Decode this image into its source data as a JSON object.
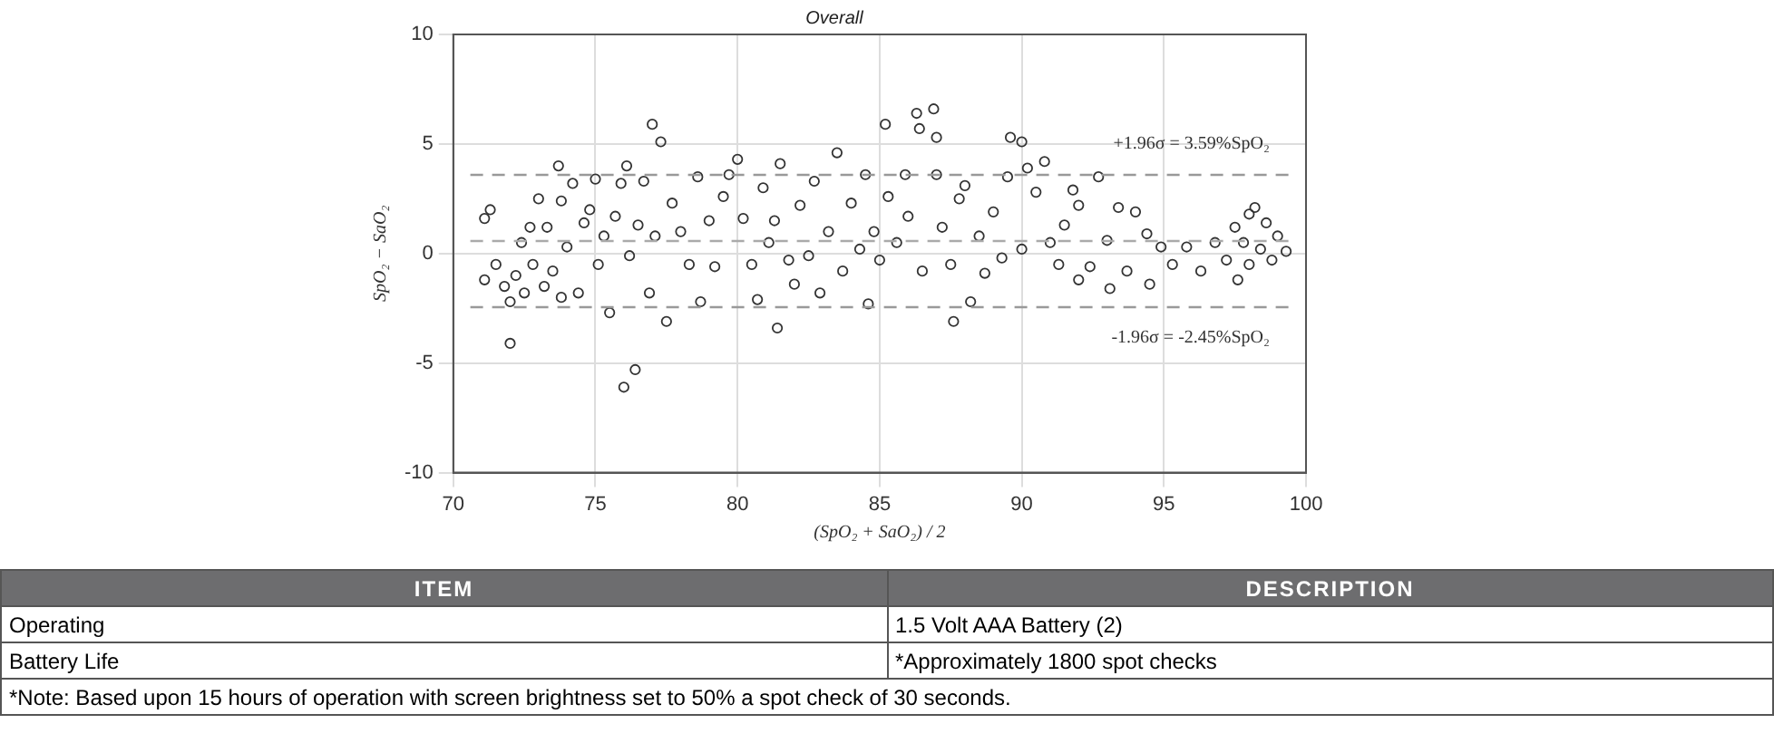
{
  "chart_data": {
    "type": "scatter",
    "title": "Overall",
    "xlabel": "(SpO₂ + SaO₂) / 2",
    "ylabel": "SpO₂ − SaO₂",
    "xlim": [
      70,
      100
    ],
    "xticks": [
      70,
      75,
      80,
      85,
      90,
      95,
      100
    ],
    "ylim": [
      -10,
      10
    ],
    "yticks": [
      -10,
      -5,
      0,
      5,
      10
    ],
    "grid": true,
    "legend": false,
    "marker": "circle",
    "series": [
      {
        "color": "#333333",
        "x": [
          71.1,
          71.3,
          71.1,
          71.5,
          71.8,
          72.0,
          72.0,
          72.2,
          72.4,
          72.5,
          72.7,
          72.8,
          73.0,
          73.2,
          73.3,
          73.5,
          73.7,
          73.8,
          73.8,
          74.0,
          74.2,
          74.4,
          74.6,
          74.8,
          75.0,
          75.1,
          75.3,
          75.5,
          75.7,
          75.9,
          76.0,
          76.1,
          76.2,
          76.4,
          76.5,
          76.7,
          76.9,
          77.0,
          77.1,
          77.3,
          77.5,
          77.7,
          78.0,
          78.3,
          78.6,
          78.7,
          79.0,
          79.2,
          79.5,
          79.7,
          80.0,
          80.2,
          80.5,
          80.7,
          80.9,
          81.1,
          81.3,
          81.4,
          81.5,
          81.8,
          82.0,
          82.2,
          82.5,
          82.7,
          82.9,
          83.2,
          83.5,
          83.7,
          84.0,
          84.3,
          84.5,
          84.6,
          84.8,
          85.0,
          85.2,
          85.3,
          85.6,
          85.9,
          86.0,
          86.3,
          86.4,
          86.5,
          86.9,
          87.0,
          87.0,
          87.2,
          87.5,
          87.6,
          87.8,
          88.0,
          88.2,
          88.5,
          88.7,
          89.0,
          89.3,
          89.5,
          89.6,
          90.0,
          90.0,
          90.2,
          90.5,
          90.8,
          91.0,
          91.3,
          91.5,
          91.8,
          92.0,
          92.0,
          92.4,
          92.7,
          93.0,
          93.1,
          93.4,
          93.7,
          94.0,
          94.4,
          94.5,
          94.9,
          95.3,
          95.8,
          96.3,
          96.8,
          97.2,
          97.5,
          97.6,
          97.8,
          98.0,
          98.0,
          98.2,
          98.4,
          98.6,
          98.8,
          99.0,
          99.3
        ],
        "values": [
          1.6,
          2.0,
          -1.2,
          -0.5,
          -1.5,
          -4.1,
          -2.2,
          -1.0,
          0.5,
          -1.8,
          1.2,
          -0.5,
          2.5,
          -1.5,
          1.2,
          -0.8,
          4.0,
          2.4,
          -2.0,
          0.3,
          3.2,
          -1.8,
          1.4,
          2.0,
          3.4,
          -0.5,
          0.8,
          -2.7,
          1.7,
          3.2,
          -6.1,
          4.0,
          -0.1,
          -5.3,
          1.3,
          3.3,
          -1.8,
          5.9,
          0.8,
          5.1,
          -3.1,
          2.3,
          1.0,
          -0.5,
          3.5,
          -2.2,
          1.5,
          -0.6,
          2.6,
          3.6,
          4.3,
          1.6,
          -0.5,
          -2.1,
          3.0,
          0.5,
          1.5,
          -3.4,
          4.1,
          -0.3,
          -1.4,
          2.2,
          -0.1,
          3.3,
          -1.8,
          1.0,
          4.6,
          -0.8,
          2.3,
          0.2,
          3.6,
          -2.3,
          1.0,
          -0.3,
          5.9,
          2.6,
          0.5,
          3.6,
          1.7,
          6.4,
          5.7,
          -0.8,
          6.6,
          5.3,
          3.6,
          1.2,
          -0.5,
          -3.1,
          2.5,
          3.1,
          -2.2,
          0.8,
          -0.9,
          1.9,
          -0.2,
          3.5,
          5.3,
          5.1,
          0.2,
          3.9,
          2.8,
          4.2,
          0.5,
          -0.5,
          1.3,
          2.9,
          2.2,
          -1.2,
          -0.6,
          3.5,
          0.6,
          -1.6,
          2.1,
          -0.8,
          1.9,
          0.9,
          -1.4,
          0.3,
          -0.5,
          0.3,
          -0.8,
          0.5,
          -0.3,
          1.2,
          -1.2,
          0.5,
          -0.5,
          1.8,
          2.1,
          0.2,
          1.4,
          -0.3,
          0.8,
          0.1
        ]
      }
    ],
    "ref_lines": [
      {
        "axis": "y",
        "value": 3.59,
        "label": "+1.96σ = 3.59%SpO₂",
        "color": "#999999",
        "line_style": "dashed"
      },
      {
        "axis": "y",
        "value": 0.57,
        "color": "#aaaaaa",
        "line_style": "dashed"
      },
      {
        "axis": "y",
        "value": -2.45,
        "label": "-1.96σ = -2.45%SpO₂",
        "color": "#999999",
        "line_style": "dashed"
      }
    ],
    "annotations": [
      "ITEM",
      "DESCRIPTION",
      "Operating",
      "1.5 Volt AAA Battery (2)",
      "Battery Life",
      "*Approximately 1800 spot checks",
      "*Note: Based upon 15 hours of operation with screen brightness set to 50% a spot check of 30 seconds."
    ]
  }
}
